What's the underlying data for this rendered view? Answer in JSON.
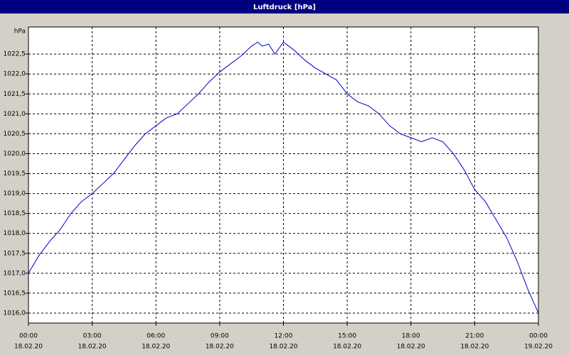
{
  "chart_data": {
    "type": "line",
    "title": "Luftdruck [hPa]",
    "y_unit": "hPa",
    "x": [
      0,
      0.5,
      1,
      1.5,
      2,
      2.5,
      3,
      3.5,
      4,
      4.5,
      5,
      5.5,
      6,
      6.5,
      7,
      7.5,
      8,
      8.5,
      9,
      9.5,
      10,
      10.5,
      10.8,
      11,
      11.3,
      11.6,
      12,
      12.5,
      13,
      13.5,
      14,
      14.5,
      15,
      15.5,
      16,
      16.5,
      17,
      17.5,
      18,
      18.5,
      19,
      19.5,
      20,
      20.5,
      21,
      21.5,
      22,
      22.5,
      23,
      23.5,
      24
    ],
    "series": [
      {
        "name": "Luftdruck",
        "color": "#0000cc",
        "values": [
          1017.0,
          1017.45,
          1017.8,
          1018.1,
          1018.5,
          1018.8,
          1019.0,
          1019.25,
          1019.5,
          1019.85,
          1020.2,
          1020.5,
          1020.7,
          1020.9,
          1021.0,
          1021.25,
          1021.5,
          1021.8,
          1022.05,
          1022.25,
          1022.45,
          1022.7,
          1022.8,
          1022.7,
          1022.75,
          1022.5,
          1022.8,
          1022.6,
          1022.35,
          1022.15,
          1022.0,
          1021.85,
          1021.5,
          1021.3,
          1021.2,
          1021.0,
          1020.7,
          1020.5,
          1020.4,
          1020.3,
          1020.4,
          1020.3,
          1020.0,
          1019.6,
          1019.1,
          1018.8,
          1018.35,
          1017.9,
          1017.3,
          1016.6,
          1016.0
        ]
      }
    ],
    "xlim": [
      0,
      24
    ],
    "xticks": [
      {
        "value": 0,
        "label": "00:00",
        "date": "18.02.20"
      },
      {
        "value": 3,
        "label": "03:00",
        "date": "18.02.20"
      },
      {
        "value": 6,
        "label": "06:00",
        "date": "18.02.20"
      },
      {
        "value": 9,
        "label": "09:00",
        "date": "18.02.20"
      },
      {
        "value": 12,
        "label": "12:00",
        "date": "18.02.20"
      },
      {
        "value": 15,
        "label": "15:00",
        "date": "18.02.20"
      },
      {
        "value": 18,
        "label": "18:00",
        "date": "18.02.20"
      },
      {
        "value": 21,
        "label": "21:00",
        "date": "18.02.20"
      },
      {
        "value": 24,
        "label": "00:00",
        "date": "19.02.20"
      }
    ],
    "ylim": [
      1015.75,
      1023.18
    ],
    "yticks": [
      {
        "value": 1016,
        "label": "1016,0"
      },
      {
        "value": 1016.5,
        "label": "1016,5"
      },
      {
        "value": 1017,
        "label": "1017,0"
      },
      {
        "value": 1017.5,
        "label": "1017,5"
      },
      {
        "value": 1018,
        "label": "1018,0"
      },
      {
        "value": 1018.5,
        "label": "1018,5"
      },
      {
        "value": 1019,
        "label": "1019,0"
      },
      {
        "value": 1019.5,
        "label": "1019,5"
      },
      {
        "value": 1020,
        "label": "1020,0"
      },
      {
        "value": 1020.5,
        "label": "1020,5"
      },
      {
        "value": 1021,
        "label": "1021,0"
      },
      {
        "value": 1021.5,
        "label": "1021,5"
      },
      {
        "value": 1022,
        "label": "1022,0"
      },
      {
        "value": 1022.5,
        "label": "1022,5"
      }
    ],
    "grid": true
  }
}
